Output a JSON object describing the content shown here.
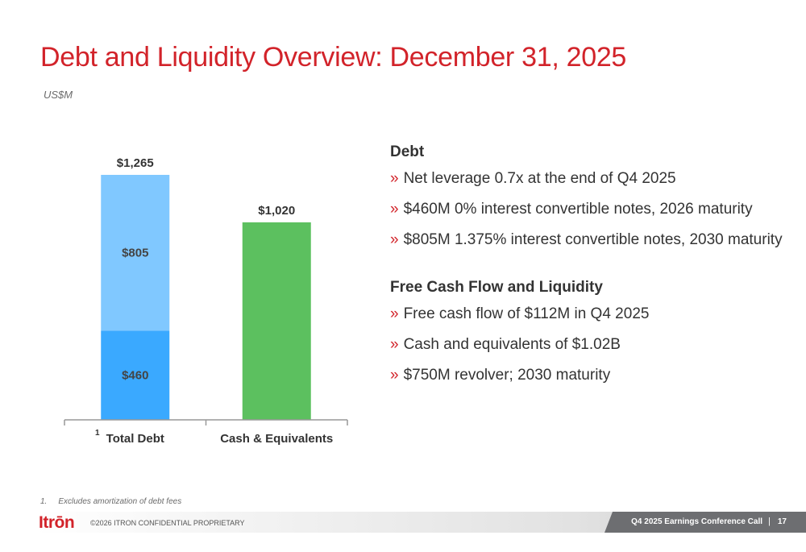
{
  "title": "Debt and Liquidity Overview: December 31, 2025",
  "units": "US$M",
  "chart_data": {
    "type": "bar",
    "stacked": true,
    "categories": [
      "Total Debt",
      "Cash & Equivalents"
    ],
    "totals": [
      "$1,265",
      "$1,020"
    ],
    "category_footnote": "1",
    "series": [
      {
        "values": [
          460,
          1020
        ],
        "labels": [
          "$460",
          ""
        ],
        "colors": [
          "#3aa9ff",
          "#5cc05f"
        ]
      },
      {
        "values": [
          805,
          0
        ],
        "labels": [
          "$805",
          ""
        ],
        "colors": [
          "#80c8ff",
          "#5cc05f"
        ]
      }
    ],
    "ylim": [
      0,
      1265
    ],
    "grid": false,
    "legend": "none"
  },
  "sections": [
    {
      "heading": "Debt",
      "bullets": [
        "Net leverage 0.7x at the end of Q4 2025",
        "$460M 0% interest convertible notes, 2026 maturity",
        "$805M 1.375% interest convertible notes, 2030 maturity"
      ]
    },
    {
      "heading": "Free Cash Flow and Liquidity",
      "bullets": [
        "Free cash flow of $112M in Q4 2025",
        "Cash and equivalents of $1.02B",
        "$750M revolver; 2030 maturity"
      ]
    }
  ],
  "bullet_marker": "»",
  "footnote": {
    "number": "1.",
    "text": "Excludes amortization of debt fees"
  },
  "footer": {
    "logo": "Itrōn",
    "copyright": "©2026  ITRON CONFIDENTIAL PROPRIETARY",
    "event": "Q4 2025 Earnings Conference Call",
    "separator": "|",
    "page": "17"
  },
  "colors": {
    "accent": "#d2232a",
    "text": "#333333"
  }
}
